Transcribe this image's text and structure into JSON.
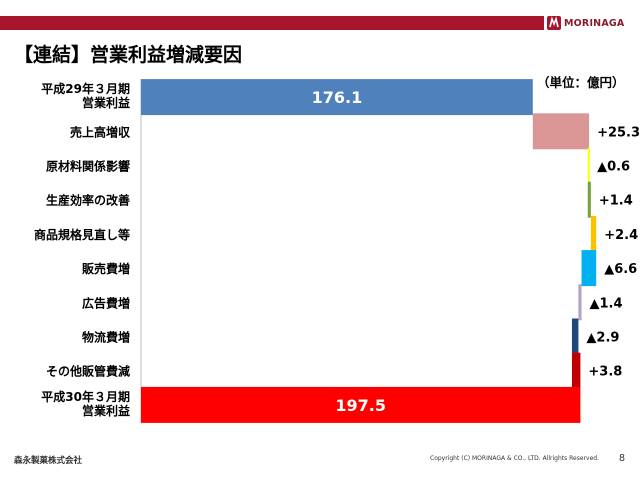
{
  "header": {
    "brand": "MORINAGA",
    "logo_icon": "morinaga-angel-logo-icon",
    "accent_color": "#a8162e"
  },
  "page_title": "【連結】営業利益増減要因",
  "unit_label": "（単位：億円）",
  "chart_data": {
    "type": "bar",
    "orientation": "horizontal",
    "subtype": "waterfall",
    "title": "【連結】営業利益増減要因",
    "unit": "（単位：億円）",
    "categories": [
      [
        "平成29年３月期",
        "営業利益"
      ],
      [
        "売上高増収"
      ],
      [
        "原材料関係影響"
      ],
      [
        "生産効率の改善"
      ],
      [
        "商品規格見直し等"
      ],
      [
        "販売費増"
      ],
      [
        "広告費増"
      ],
      [
        "物流費増"
      ],
      [
        "その他販管費減"
      ],
      [
        "平成30年３月期",
        "営業利益"
      ]
    ],
    "kinds": [
      "total",
      "delta",
      "delta",
      "delta",
      "delta",
      "delta",
      "delta",
      "delta",
      "delta",
      "total"
    ],
    "values": [
      176.1,
      25.3,
      -0.6,
      1.4,
      2.4,
      -6.6,
      -1.4,
      -2.9,
      3.8,
      197.5
    ],
    "value_labels": [
      "176.1",
      "+25.3",
      "▲0.6",
      "+1.4",
      "+2.4",
      "▲6.6",
      "▲1.4",
      "▲2.9",
      "+3.8",
      "197.5"
    ],
    "colors": [
      "#4f81bd",
      "#d99694",
      "#ffff00",
      "#77a440",
      "#ffc000",
      "#00b0f0",
      "#b3a2c7",
      "#1f497d",
      "#c00000",
      "#ff0000"
    ],
    "xlim": [
      0,
      209
    ],
    "grid": false,
    "legend": "none"
  },
  "footer": {
    "company": "森永製菓株式会社",
    "copyright": "Copyright (C) MORINAGA & CO., LTD. Allrights Reserved.",
    "page_number": "8"
  }
}
